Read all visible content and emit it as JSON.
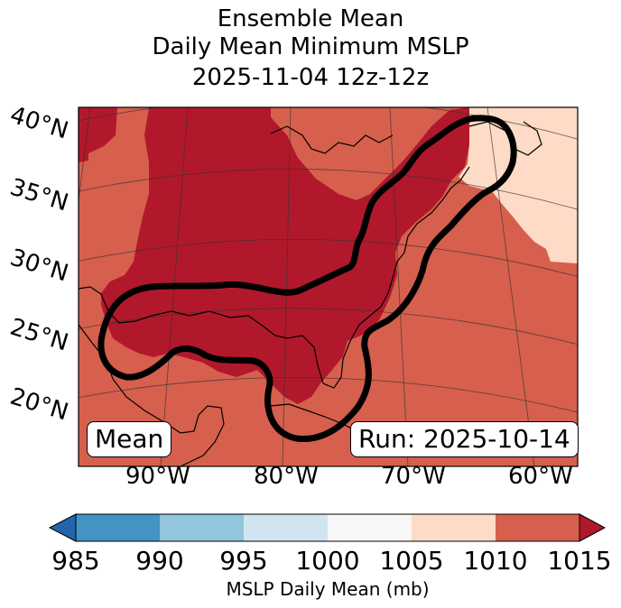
{
  "title": {
    "line1": "Ensemble Mean",
    "line2": "Daily Mean Minimum MSLP",
    "line3": "2025-11-04 12z-12z"
  },
  "map": {
    "lat_labels": [
      "40°N",
      "35°N",
      "30°N",
      "25°N",
      "20°N"
    ],
    "lon_labels": [
      "90°W",
      "80°W",
      "70°W",
      "60°W"
    ],
    "left_box": "Mean",
    "right_box": "Run: 2025-10-14",
    "colors": {
      "very_low": "#2166ac",
      "low_985_990": "#4393c3",
      "low_990_995": "#92c5de",
      "low_995_1000": "#d1e5f0",
      "neutral_1000_1005": "#f7f7f7",
      "high_1005_1010": "#fddbc7",
      "high_1010_1015": "#d6604d",
      "very_high": "#b2182b"
    }
  },
  "colorbar": {
    "ticks": [
      "985",
      "990",
      "995",
      "1000",
      "1005",
      "1010",
      "1015"
    ],
    "label": "MSLP Daily Mean (mb)"
  }
}
